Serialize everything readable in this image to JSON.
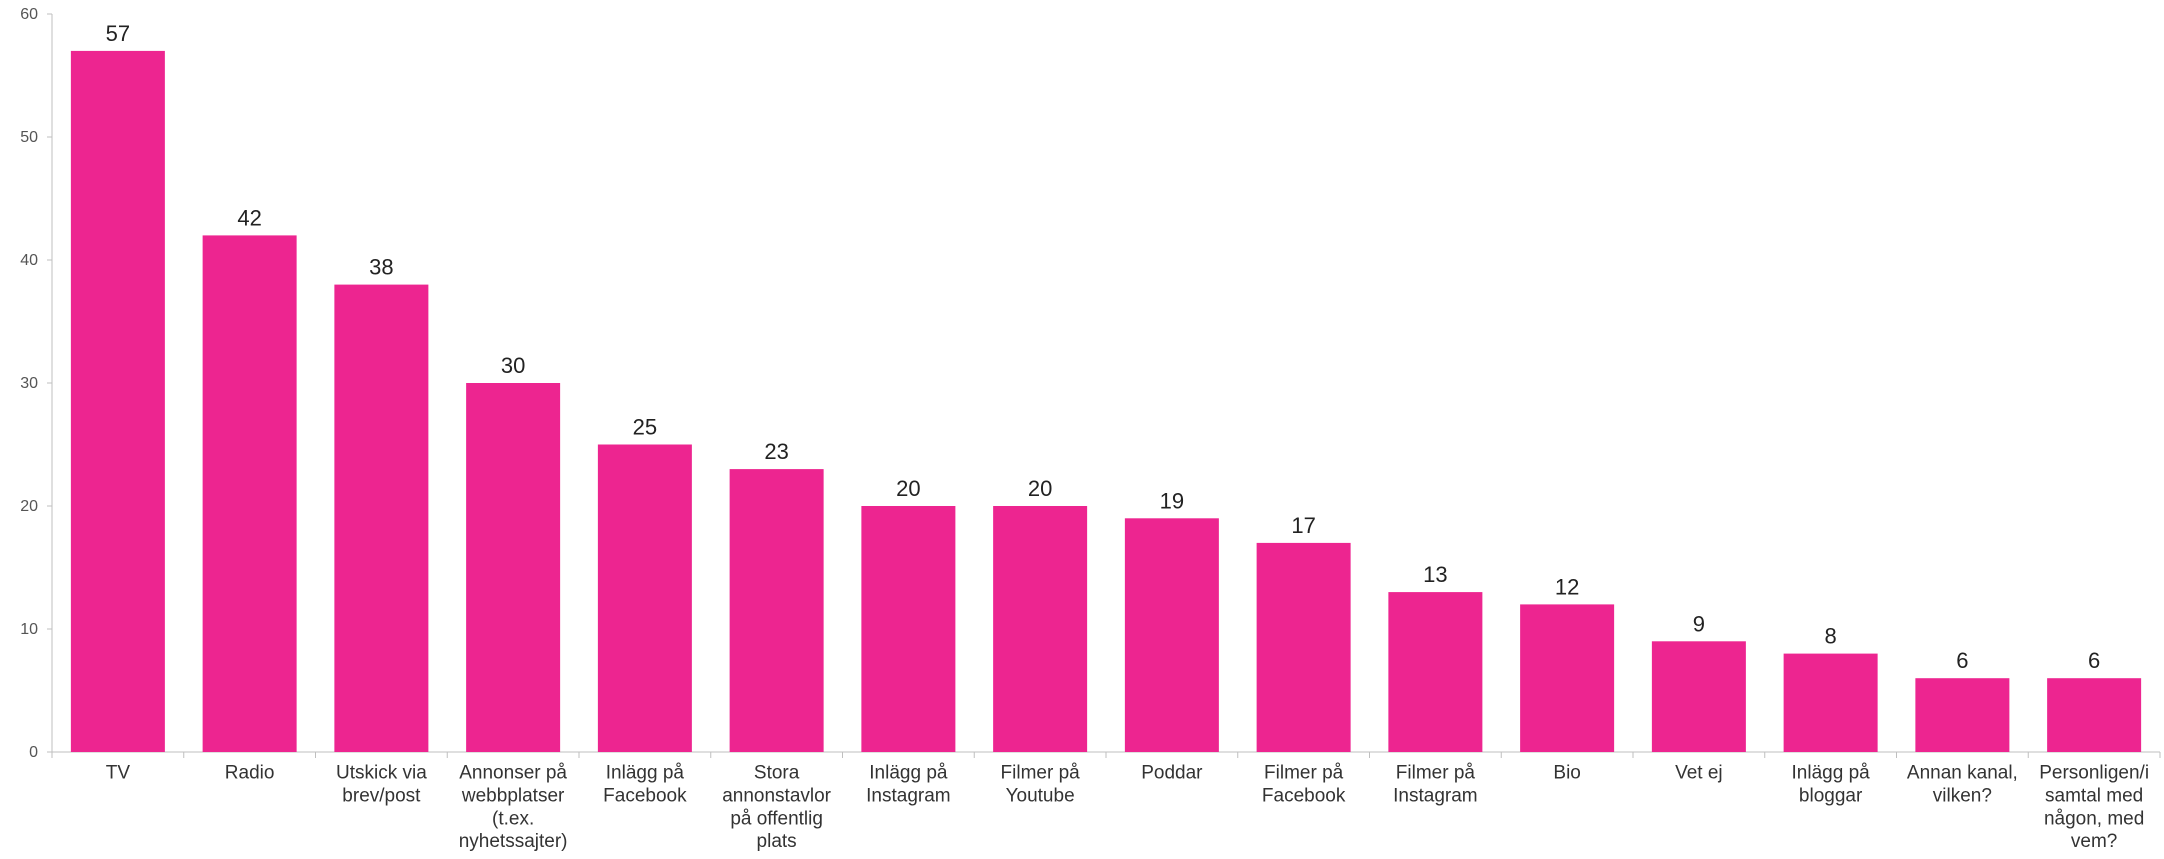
{
  "chart_data": {
    "type": "bar",
    "categories": [
      "TV",
      "Radio",
      "Utskick via brev/post",
      "Annonser på webbplatser (t.ex. nyhetssajter)",
      "Inlägg på Facebook",
      "Stora annonstavlor på offentlig plats",
      "Inlägg på Instagram",
      "Filmer på Youtube",
      "Poddar",
      "Filmer på Facebook",
      "Filmer på Instagram",
      "Bio",
      "Vet ej",
      "Inlägg på bloggar",
      "Annan kanal, vilken?",
      "Personligen/i samtal med någon, med vem?"
    ],
    "category_lines": [
      [
        "TV"
      ],
      [
        "Radio"
      ],
      [
        "Utskick via",
        "brev/post"
      ],
      [
        "Annonser på",
        "webbplatser",
        "(t.ex.",
        "nyhetssajter)"
      ],
      [
        "Inlägg på",
        "Facebook"
      ],
      [
        "Stora",
        "annonstavlor",
        "på offentlig",
        "plats"
      ],
      [
        "Inlägg på",
        "Instagram"
      ],
      [
        "Filmer på",
        "Youtube"
      ],
      [
        "Poddar"
      ],
      [
        "Filmer på",
        "Facebook"
      ],
      [
        "Filmer på",
        "Instagram"
      ],
      [
        "Bio"
      ],
      [
        "Vet ej"
      ],
      [
        "Inlägg på",
        "bloggar"
      ],
      [
        "Annan kanal,",
        "vilken?"
      ],
      [
        "Personligen/i",
        "samtal med",
        "någon, med",
        "vem?"
      ]
    ],
    "values": [
      57,
      42,
      38,
      30,
      25,
      23,
      20,
      20,
      19,
      17,
      13,
      12,
      9,
      8,
      6,
      6
    ],
    "ylim": [
      0,
      60
    ],
    "yticks": [
      0,
      10,
      20,
      30,
      40,
      50,
      60
    ],
    "grid": false,
    "data_labels": true,
    "title": "",
    "xlabel": "",
    "ylabel": "",
    "bar_color": "#ed2590",
    "axis_color": "#bfbfbf"
  }
}
